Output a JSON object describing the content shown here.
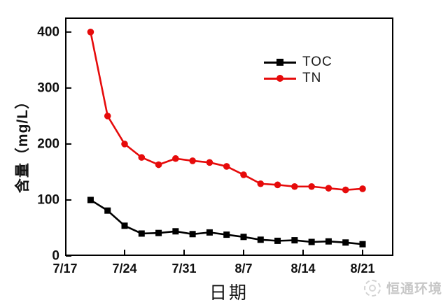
{
  "colors": {
    "axis": "#000000",
    "tick_label": "#111111",
    "toc_series": "#000000",
    "tn_series": "#e60b0b",
    "watermark": "#c7c7c7"
  },
  "chart_data": {
    "type": "line",
    "title": "",
    "xlabel": "日期",
    "ylabel": "含量（mg/L）",
    "grid": false,
    "legend_position": "inside-top-center",
    "x_tick_labels": [
      "7/17",
      "7/24",
      "7/31",
      "8/7",
      "8/14",
      "8/21"
    ],
    "x_tick_day_offsets": [
      0,
      7,
      14,
      21,
      28,
      35
    ],
    "y_tick_labels": [
      "0",
      "100",
      "200",
      "300",
      "400"
    ],
    "y_tick_values": [
      0,
      100,
      200,
      300,
      400
    ],
    "ylim": [
      0,
      426
    ],
    "x": [
      "7/20",
      "7/22",
      "7/24",
      "7/26",
      "7/28",
      "7/30",
      "8/1",
      "8/3",
      "8/5",
      "8/7",
      "8/9",
      "8/11",
      "8/13",
      "8/15",
      "8/17",
      "8/19",
      "8/21"
    ],
    "x_day_offsets": [
      3,
      5,
      7,
      9,
      11,
      13,
      15,
      17,
      19,
      21,
      23,
      25,
      27,
      29,
      31,
      33,
      35
    ],
    "series": [
      {
        "name": "TOC",
        "color": "#000000",
        "marker": "square",
        "values": [
          100,
          81,
          54,
          40,
          41,
          44,
          39,
          42,
          38,
          34,
          29,
          27,
          28,
          25,
          26,
          24,
          21
        ]
      },
      {
        "name": "TN",
        "color": "#e60b0b",
        "marker": "circle",
        "values": [
          400,
          250,
          200,
          176,
          163,
          174,
          170,
          167,
          160,
          145,
          129,
          127,
          124,
          124,
          121,
          118,
          120
        ]
      }
    ]
  },
  "watermark": {
    "text": "恒通环境"
  }
}
